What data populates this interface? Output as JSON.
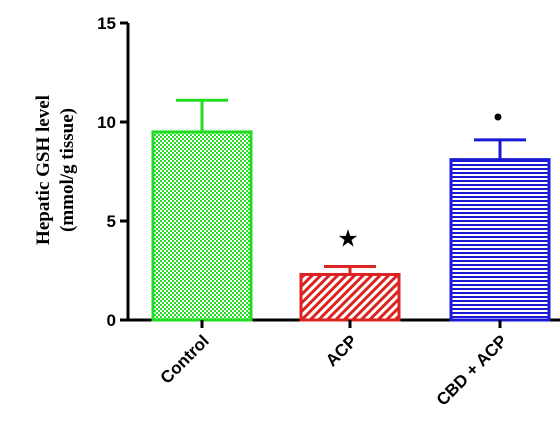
{
  "chart_data": {
    "type": "bar",
    "ylabel_line1": "Hepatic GSH level",
    "ylabel_line2": "(mmol/g tissue)",
    "xlabel": "",
    "ylim": [
      0,
      15
    ],
    "yticks": [
      0,
      5,
      10,
      15
    ],
    "categories": [
      "Control",
      "ACP",
      "CBD + ACP"
    ],
    "values": [
      9.5,
      2.3,
      8.1
    ],
    "errors": [
      1.6,
      0.4,
      1.0
    ],
    "colors": [
      "#22dd22",
      "#dd2222",
      "#1a1ad6"
    ],
    "patterns": [
      "checker",
      "diagonal",
      "horizontal"
    ],
    "markers": [
      "",
      "★",
      "•"
    ]
  }
}
